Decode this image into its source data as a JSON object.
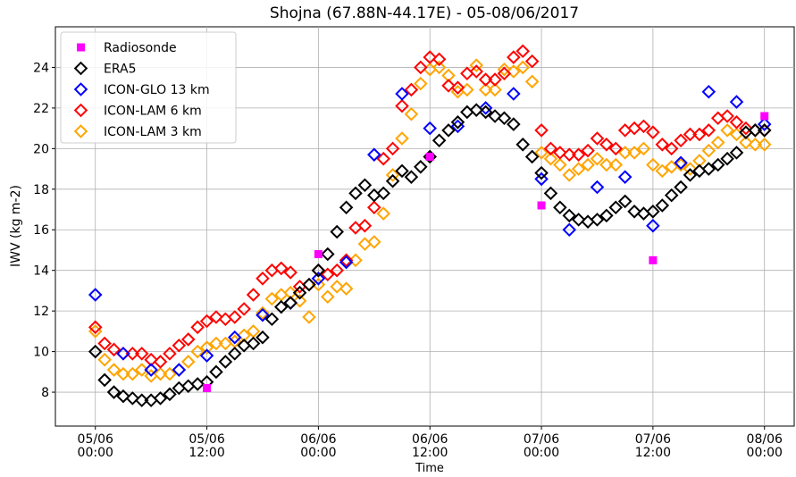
{
  "chart_data": {
    "type": "scatter",
    "title": "Shojna (67.88N-44.17E) - 05-08/06/2017",
    "x_label": "Time",
    "y_label": "IWV (kg m-2)",
    "xlim": [
      -4.3,
      75.2
    ],
    "ylim": [
      6.33,
      26
    ],
    "xticks": [
      {
        "value": 0,
        "label": "05/06\n00:00"
      },
      {
        "value": 12,
        "label": "05/06\n12:00"
      },
      {
        "value": 24,
        "label": "06/06\n00:00"
      },
      {
        "value": 36,
        "label": "06/06\n12:00"
      },
      {
        "value": 48,
        "label": "07/06\n00:00"
      },
      {
        "value": 60,
        "label": "07/06\n12:00"
      },
      {
        "value": 72,
        "label": "08/06\n00:00"
      }
    ],
    "yticks": [
      8,
      10,
      12,
      14,
      16,
      18,
      20,
      22,
      24
    ],
    "grid": true,
    "legend": "upper left",
    "series": [
      {
        "name": "Radiosonde",
        "color": "#ff00ff",
        "marker": "square",
        "x": [
          12,
          24,
          36,
          48,
          60,
          72
        ],
        "values": [
          8.2,
          14.8,
          19.6,
          17.2,
          14.5,
          21.6
        ]
      },
      {
        "name": "ERA5",
        "color": "#000000",
        "marker": "diamond",
        "x": [
          0,
          1,
          2,
          3,
          4,
          5,
          6,
          7,
          8,
          9,
          10,
          11,
          12,
          13,
          14,
          15,
          16,
          17,
          18,
          19,
          20,
          21,
          22,
          23,
          24,
          25,
          26,
          27,
          28,
          29,
          30,
          31,
          32,
          33,
          34,
          35,
          36,
          37,
          38,
          39,
          40,
          41,
          42,
          43,
          44,
          45,
          46,
          47,
          48,
          49,
          50,
          51,
          52,
          53,
          54,
          55,
          56,
          57,
          58,
          59,
          60,
          61,
          62,
          63,
          64,
          65,
          66,
          67,
          68,
          69,
          70,
          71,
          72
        ],
        "values": [
          10.0,
          8.6,
          8.0,
          7.8,
          7.7,
          7.6,
          7.6,
          7.7,
          7.9,
          8.2,
          8.3,
          8.4,
          8.5,
          9.0,
          9.5,
          9.9,
          10.3,
          10.4,
          10.7,
          11.6,
          12.2,
          12.4,
          12.9,
          13.3,
          14.0,
          14.8,
          15.9,
          17.1,
          17.8,
          18.2,
          17.7,
          17.8,
          18.4,
          18.9,
          18.6,
          19.1,
          19.6,
          20.4,
          20.9,
          21.3,
          21.8,
          21.9,
          21.8,
          21.6,
          21.5,
          21.2,
          20.2,
          19.6,
          18.8,
          17.8,
          17.1,
          16.7,
          16.5,
          16.4,
          16.5,
          16.7,
          17.1,
          17.4,
          16.9,
          16.8,
          16.9,
          17.2,
          17.7,
          18.1,
          18.7,
          18.9,
          19.0,
          19.2,
          19.5,
          19.8,
          20.8,
          20.9,
          20.9
        ]
      },
      {
        "name": "ICON-GLO 13 km",
        "color": "#0000ff",
        "marker": "diamond",
        "x": [
          0,
          3,
          6,
          9,
          12,
          15,
          18,
          21,
          24,
          27,
          30,
          33,
          36,
          39,
          42,
          45,
          48,
          51,
          54,
          57,
          60,
          63,
          66,
          69,
          72
        ],
        "values": [
          12.8,
          9.9,
          9.1,
          9.1,
          9.8,
          10.7,
          11.8,
          12.4,
          13.6,
          14.4,
          19.7,
          22.7,
          21.0,
          21.1,
          22.0,
          22.7,
          18.5,
          16.0,
          18.1,
          18.6,
          16.2,
          19.3,
          22.8,
          22.3,
          21.2
        ]
      },
      {
        "name": "ICON-LAM 6 km",
        "color": "#ff0000",
        "marker": "diamond",
        "x": [
          0,
          1,
          2,
          3,
          4,
          5,
          6,
          7,
          8,
          9,
          10,
          11,
          12,
          13,
          14,
          15,
          16,
          17,
          18,
          19,
          20,
          21,
          22,
          23,
          24,
          25,
          26,
          27,
          28,
          29,
          30,
          31,
          32,
          33,
          34,
          35,
          36,
          37,
          38,
          39,
          40,
          41,
          42,
          43,
          44,
          45,
          46,
          47,
          48,
          49,
          50,
          51,
          52,
          53,
          54,
          55,
          56,
          57,
          58,
          59,
          60,
          61,
          62,
          63,
          64,
          65,
          66,
          67,
          68,
          69,
          70,
          71,
          72
        ],
        "values": [
          11.2,
          10.4,
          10.1,
          9.9,
          9.9,
          9.9,
          9.6,
          9.5,
          9.9,
          10.3,
          10.6,
          11.2,
          11.5,
          11.7,
          11.6,
          11.7,
          12.1,
          12.8,
          13.6,
          14.0,
          14.1,
          13.9,
          13.2,
          13.3,
          14.0,
          13.8,
          14.0,
          14.5,
          16.1,
          16.2,
          17.1,
          19.5,
          20.0,
          22.1,
          22.9,
          24.0,
          24.5,
          24.4,
          23.1,
          23.0,
          23.7,
          23.8,
          23.4,
          23.4,
          23.7,
          24.5,
          24.8,
          24.3,
          20.9,
          20.0,
          19.8,
          19.7,
          19.7,
          19.9,
          20.5,
          20.2,
          20.0,
          20.9,
          21.0,
          21.1,
          20.8,
          20.2,
          20.0,
          20.4,
          20.7,
          20.7,
          20.9,
          21.5,
          21.6,
          21.3,
          21.0,
          20.9,
          20.9
        ]
      },
      {
        "name": "ICON-LAM 3 km",
        "color": "#ffa500",
        "marker": "diamond",
        "x": [
          0,
          1,
          2,
          3,
          4,
          5,
          6,
          7,
          8,
          9,
          10,
          11,
          12,
          13,
          14,
          15,
          16,
          17,
          18,
          19,
          20,
          21,
          22,
          23,
          24,
          25,
          26,
          27,
          28,
          29,
          30,
          31,
          32,
          33,
          34,
          35,
          36,
          37,
          38,
          39,
          40,
          41,
          42,
          43,
          44,
          45,
          46,
          47,
          48,
          49,
          50,
          51,
          52,
          53,
          54,
          55,
          56,
          57,
          58,
          59,
          60,
          61,
          62,
          63,
          64,
          65,
          66,
          67,
          68,
          69,
          70,
          71,
          72
        ],
        "values": [
          11.0,
          9.6,
          9.1,
          8.9,
          8.9,
          9.1,
          8.8,
          8.9,
          8.9,
          9.1,
          9.5,
          10.0,
          10.2,
          10.4,
          10.4,
          10.5,
          10.8,
          11.0,
          11.9,
          12.6,
          12.8,
          12.9,
          12.5,
          11.7,
          13.3,
          12.7,
          13.2,
          13.1,
          14.5,
          15.3,
          15.4,
          16.8,
          18.7,
          20.5,
          21.7,
          23.2,
          23.9,
          24.0,
          23.6,
          22.8,
          22.9,
          24.1,
          22.9,
          22.9,
          23.9,
          23.8,
          24.0,
          23.3,
          19.8,
          19.5,
          19.2,
          18.7,
          19.0,
          19.2,
          19.5,
          19.2,
          19.2,
          19.8,
          19.8,
          20.0,
          19.2,
          18.9,
          19.1,
          19.2,
          19.0,
          19.4,
          19.9,
          20.3,
          20.9,
          20.7,
          20.3,
          20.2,
          20.2
        ]
      }
    ]
  }
}
